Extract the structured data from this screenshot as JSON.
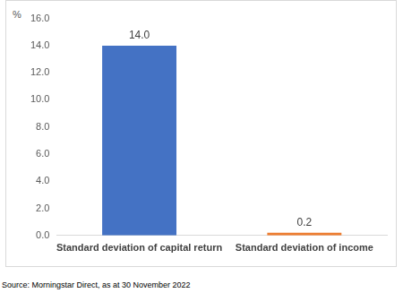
{
  "chart_data": {
    "type": "bar",
    "ylabel": "%",
    "categories": [
      "Standard deviation of capital return",
      "Standard deviation of income"
    ],
    "values": [
      14.0,
      0.2
    ],
    "value_labels": [
      "14.0",
      "0.2"
    ],
    "colors": [
      "#4472c4",
      "#ed7d31"
    ],
    "ylim": [
      0,
      16
    ],
    "yticks": [
      {
        "value": 0,
        "label": "0.0"
      },
      {
        "value": 2,
        "label": "2.0"
      },
      {
        "value": 4,
        "label": "4.0"
      },
      {
        "value": 6,
        "label": "6.0"
      },
      {
        "value": 8,
        "label": "8.0"
      },
      {
        "value": 10,
        "label": "10.0"
      },
      {
        "value": 12,
        "label": "12.0"
      },
      {
        "value": 14,
        "label": "14.0"
      },
      {
        "value": 16,
        "label": "16.0"
      }
    ],
    "grid": false,
    "data_labels": true,
    "annotations": [
      "Source: Morningstar Direct, as at 30 November 2022"
    ]
  }
}
